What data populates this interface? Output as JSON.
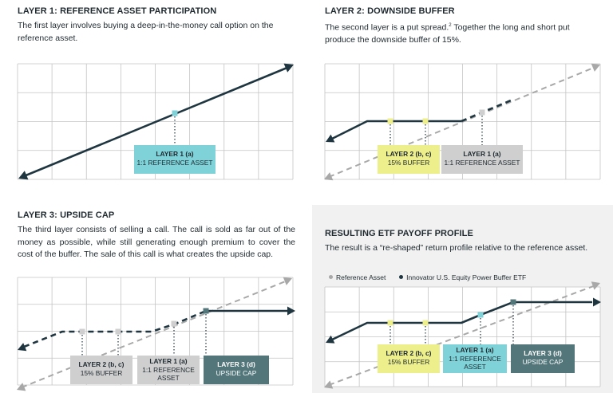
{
  "colors": {
    "grid": "#c4c4c4",
    "line": "#1f3640",
    "reference": "#a8a8a8",
    "cyan": "#7fd2d8",
    "yellow": "#edee8c",
    "gray": "#cfcfcf",
    "teal": "#52767a",
    "panel_bg": "#f1f1f1"
  },
  "panel1": {
    "title": "LAYER 1: REFERENCE ASSET PARTICIPATION",
    "desc": "The first layer involves buying a deep-in-the-money call option on the reference asset.",
    "labels": [
      {
        "title": "LAYER 1 (a)",
        "sub": "1:1 REFERENCE ASSET"
      }
    ]
  },
  "panel2": {
    "title": "LAYER 2: DOWNSIDE BUFFER",
    "desc_a": "The second layer is a put spread.",
    "desc_sup": "2",
    "desc_b": " Together the long and short put produce the downside buffer of  15%.",
    "labels": [
      {
        "title": "LAYER 2 (b, c)",
        "sub": "15% BUFFER"
      },
      {
        "title": "LAYER 1 (a)",
        "sub": "1:1 REFERENCE ASSET"
      }
    ]
  },
  "panel3": {
    "title": "LAYER 3: UPSIDE CAP",
    "desc": "The third layer consists of selling a call. The call is sold as far out of the money as possible, while still generating enough premium to cover the cost of the buffer. The sale of this call is what creates the upside cap.",
    "labels": [
      {
        "title": "LAYER 2 (b, c)",
        "sub": "15% BUFFER"
      },
      {
        "title": "LAYER 1 (a)",
        "sub": "1:1 REFERENCE ASSET"
      },
      {
        "title": "LAYER 3 (d)",
        "sub": "UPSIDE CAP"
      }
    ]
  },
  "panel4": {
    "title": "RESULTING ETF PAYOFF PROFILE",
    "desc": "The result is a “re-shaped” return profile relative to the reference asset.",
    "legend": {
      "reference": "Reference Asset",
      "etf": "Innovator U.S. Equity Power Buffer ETF"
    },
    "labels": [
      {
        "title": "LAYER 2 (b, c)",
        "sub": "15% BUFFER"
      },
      {
        "title": "LAYER 1 (a)",
        "sub": "1:1 REFERENCE ASSET"
      },
      {
        "title": "LAYER 3 (d)",
        "sub": "UPSIDE CAP"
      }
    ]
  }
}
